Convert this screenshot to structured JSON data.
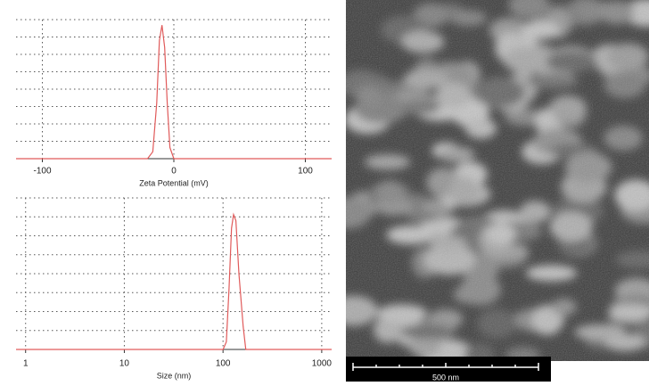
{
  "chart_data": [
    {
      "type": "line",
      "xlabel": "Zeta Potential (mV)",
      "log_x": false,
      "grid": true,
      "xlim": [
        -120,
        120
      ],
      "xticks": [
        -100,
        0,
        100
      ],
      "ylim": [
        0,
        100
      ],
      "yticks": [
        12.5,
        25,
        37.5,
        50,
        62.5,
        75,
        87.5,
        100
      ],
      "series": [
        {
          "color": "#e05a5a",
          "x": [
            -120,
            -30,
            -20,
            -16,
            -13,
            -11,
            -9,
            -7,
            -5,
            -3,
            0,
            5,
            120
          ],
          "values": [
            0,
            0,
            0,
            5,
            40,
            85,
            96,
            80,
            40,
            8,
            0,
            0,
            0
          ]
        }
      ]
    },
    {
      "type": "line",
      "xlabel": "Size (nm)",
      "log_x": true,
      "grid": true,
      "xlim": [
        0.8,
        1260
      ],
      "xticks": [
        1,
        10,
        100,
        1000
      ],
      "ylim": [
        0,
        100
      ],
      "yticks": [
        12.5,
        25,
        37.5,
        50,
        62.5,
        75,
        87.5,
        100
      ],
      "series": [
        {
          "color": "#e05a5a",
          "x": [
            0.8,
            80,
            100,
            108,
            115,
            122,
            128,
            135,
            145,
            160,
            170,
            200,
            1260
          ],
          "values": [
            0,
            0,
            0,
            5,
            40,
            80,
            89,
            85,
            50,
            15,
            0,
            0,
            0
          ]
        }
      ]
    }
  ],
  "image": {
    "scale_bar_label": "500 nm"
  }
}
